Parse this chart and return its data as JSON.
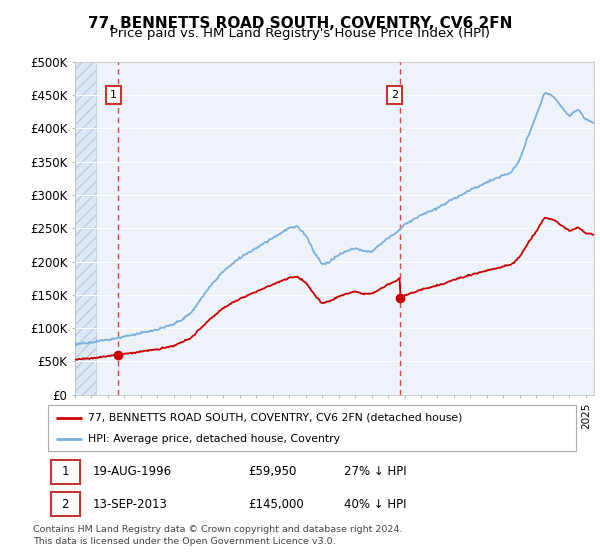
{
  "title": "77, BENNETTS ROAD SOUTH, COVENTRY, CV6 2FN",
  "subtitle": "Price paid vs. HM Land Registry's House Price Index (HPI)",
  "ylim": [
    0,
    500000
  ],
  "yticks": [
    0,
    50000,
    100000,
    150000,
    200000,
    250000,
    300000,
    350000,
    400000,
    450000,
    500000
  ],
  "ytick_labels": [
    "£0",
    "£50K",
    "£100K",
    "£150K",
    "£200K",
    "£250K",
    "£300K",
    "£350K",
    "£400K",
    "£450K",
    "£500K"
  ],
  "hpi_color": "#7ab0de",
  "price_color": "#cc0000",
  "background_plot": "#eef3fa",
  "grid_color": "#ffffff",
  "dashed_line_color": "#dd4444",
  "purchase1": {
    "date_num": 1996.63,
    "price": 59950,
    "label": "1"
  },
  "purchase2": {
    "date_num": 2013.71,
    "price": 145000,
    "label": "2"
  },
  "legend_line1": "77, BENNETTS ROAD SOUTH, COVENTRY, CV6 2FN (detached house)",
  "legend_line2": "HPI: Average price, detached house, Coventry",
  "table_row1": [
    "1",
    "19-AUG-1996",
    "£59,950",
    "27% ↓ HPI"
  ],
  "table_row2": [
    "2",
    "13-SEP-2013",
    "£145,000",
    "40% ↓ HPI"
  ],
  "footer": "Contains HM Land Registry data © Crown copyright and database right 2024.\nThis data is licensed under the Open Government Licence v3.0.",
  "title_fontsize": 11,
  "subtitle_fontsize": 9.5,
  "xmin": 1994,
  "xmax": 2025.5
}
